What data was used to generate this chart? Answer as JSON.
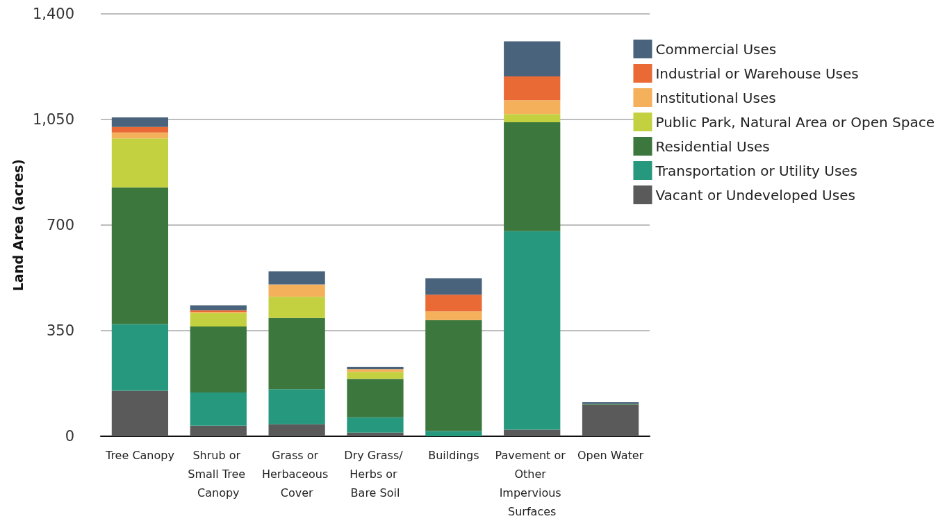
{
  "chart_data": {
    "type": "bar",
    "stacked": true,
    "ylabel": "Land Area (acres)",
    "categories": [
      "Tree Canopy",
      "Shrub or Small Tree Canopy",
      "Grass or Herbaceous Cover",
      "Dry Grass/ Herbs or Bare Soil",
      "Buildings",
      "Pavement or Other Impervious Surfaces",
      "Open Water"
    ],
    "series": [
      {
        "name": "Vacant or Undeveloped Uses",
        "color": "#5a5a5a",
        "values": [
          151,
          35,
          40,
          12,
          null,
          22,
          104
        ]
      },
      {
        "name": "Transportation or Utility Uses",
        "color": "#26987e",
        "values": [
          221,
          110,
          116,
          51,
          17,
          658,
          null
        ]
      },
      {
        "name": "Residential Uses",
        "color": "#3c773e",
        "values": [
          453,
          219,
          236,
          127,
          368,
          361,
          3
        ]
      },
      {
        "name": "Public Park, Natural Area or Open Space",
        "color": "#c3d140",
        "values": [
          162,
          44,
          70,
          23,
          null,
          27,
          null
        ]
      },
      {
        "name": "Institutional Uses",
        "color": "#f4b05a",
        "values": [
          20,
          4,
          41,
          10,
          29,
          46,
          null
        ]
      },
      {
        "name": "Industrial or Warehouse Uses",
        "color": "#ea6a35",
        "values": [
          18,
          6,
          null,
          null,
          55,
          79,
          null
        ]
      },
      {
        "name": "Commercial Uses",
        "color": "#4a637c",
        "values": [
          32,
          16,
          44,
          7,
          55,
          116,
          6
        ]
      }
    ],
    "ylim": [
      0,
      1400
    ],
    "yticks": [
      0,
      350,
      700,
      {
        "value": 1050,
        "label": "1,050"
      },
      {
        "value": 1400,
        "label": "1,400"
      }
    ],
    "grid": "y",
    "legend": "top right"
  }
}
